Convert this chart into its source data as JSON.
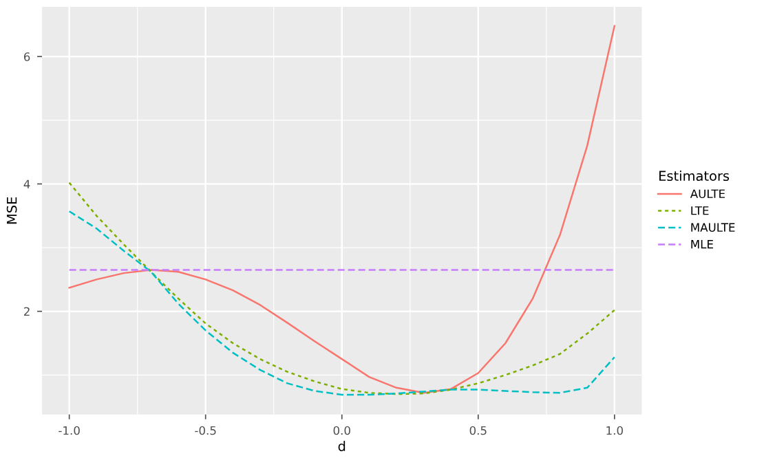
{
  "chart_data": {
    "type": "line",
    "xlabel": "d",
    "ylabel": "MSE",
    "legend_title": "Estimators",
    "legend": "right",
    "grid": true,
    "x": [
      -1,
      -0.9,
      -0.8,
      -0.7,
      -0.6,
      -0.5,
      -0.4,
      -0.3,
      -0.2,
      -0.1,
      0,
      0.1,
      0.2,
      0.3,
      0.4,
      0.5,
      0.6,
      0.7,
      0.8,
      0.9,
      1
    ],
    "xlim": [
      -1.1,
      1.1
    ],
    "xticks": [
      {
        "value": -1,
        "label": "-1.0"
      },
      {
        "value": -0.5,
        "label": "-0.5"
      },
      {
        "value": 0,
        "label": "0.0"
      },
      {
        "value": 0.5,
        "label": "0.5"
      },
      {
        "value": 1,
        "label": "1.0"
      }
    ],
    "ylim": [
      0.38,
      6.78
    ],
    "yticks": [
      2,
      4,
      6
    ],
    "series": [
      {
        "name": "AULTE",
        "color": "#f8766d",
        "line_style": "solid",
        "values": [
          2.37,
          2.5,
          2.6,
          2.65,
          2.62,
          2.5,
          2.33,
          2.1,
          1.82,
          1.53,
          1.25,
          0.97,
          0.8,
          0.72,
          0.78,
          1.03,
          1.5,
          2.2,
          3.2,
          4.6,
          6.48
        ]
      },
      {
        "name": "LTE",
        "color": "#7cae00",
        "line_style": "dotted",
        "values": [
          4.02,
          3.5,
          3.05,
          2.62,
          2.2,
          1.81,
          1.5,
          1.25,
          1.05,
          0.9,
          0.78,
          0.72,
          0.7,
          0.71,
          0.77,
          0.87,
          1.0,
          1.15,
          1.33,
          1.65,
          2.02
        ]
      },
      {
        "name": "MAULTE",
        "color": "#00bfc4",
        "line_style": "dashed",
        "values": [
          3.57,
          3.3,
          2.95,
          2.62,
          2.12,
          1.7,
          1.35,
          1.08,
          0.87,
          0.75,
          0.69,
          0.69,
          0.71,
          0.74,
          0.77,
          0.77,
          0.75,
          0.73,
          0.72,
          0.8,
          1.28
        ]
      },
      {
        "name": "MLE",
        "color": "#c77cff",
        "line_style": "dashed",
        "x": [
          -1,
          1
        ],
        "values": [
          2.65,
          2.65
        ]
      }
    ]
  }
}
